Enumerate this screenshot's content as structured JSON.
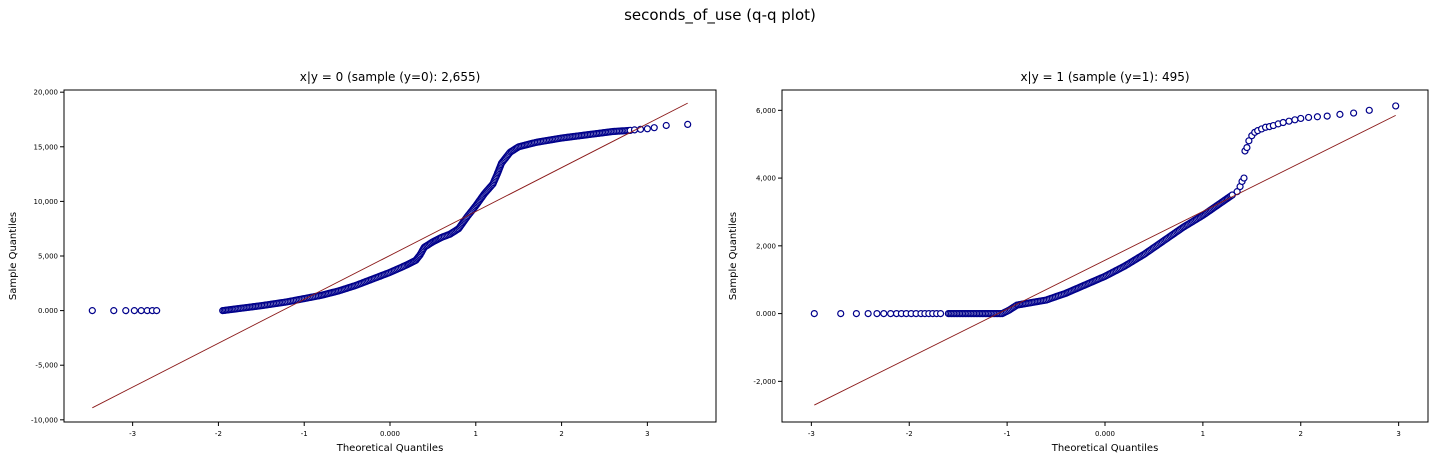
{
  "figure": {
    "title": "seconds_of_use (q-q plot)"
  },
  "colors": {
    "marker_edge": "#00008b",
    "marker_fill": "#ffffff",
    "reference_line": "#8b1a1a"
  },
  "chart_data": [
    {
      "type": "scatter",
      "title": "x|y = 0 (sample (y=0): 2,655)",
      "xlabel": "Theoretical Quantiles",
      "ylabel": "Sample Quantiles",
      "xlim": [
        -3.8,
        3.8
      ],
      "ylim": [
        -10200,
        20200
      ],
      "xticks": [
        -3,
        -2,
        -1,
        0,
        1,
        2,
        3
      ],
      "xtick_labels": [
        "-3",
        "-2",
        "-1",
        "0.000",
        "1",
        "2",
        "3"
      ],
      "yticks": [
        -10000,
        -5000,
        0,
        5000,
        10000,
        15000,
        20000
      ],
      "ytick_labels": [
        "-10,000",
        "-5,000",
        "0.000",
        "5,000",
        "10,000",
        "15,000",
        "20,000"
      ],
      "reference_line": {
        "x": [
          -3.47,
          3.47
        ],
        "y": [
          -8900,
          19000
        ]
      },
      "curve": [
        [
          -1.95,
          0
        ],
        [
          -1.8,
          150
        ],
        [
          -1.5,
          450
        ],
        [
          -1.2,
          800
        ],
        [
          -1.0,
          1100
        ],
        [
          -0.8,
          1400
        ],
        [
          -0.6,
          1800
        ],
        [
          -0.4,
          2300
        ],
        [
          -0.2,
          2900
        ],
        [
          0.0,
          3500
        ],
        [
          0.2,
          4200
        ],
        [
          0.3,
          4600
        ],
        [
          0.35,
          5100
        ],
        [
          0.4,
          5800
        ],
        [
          0.5,
          6300
        ],
        [
          0.6,
          6700
        ],
        [
          0.7,
          7000
        ],
        [
          0.8,
          7500
        ],
        [
          0.9,
          8600
        ],
        [
          1.0,
          9600
        ],
        [
          1.1,
          10700
        ],
        [
          1.2,
          11600
        ],
        [
          1.25,
          12500
        ],
        [
          1.3,
          13500
        ],
        [
          1.4,
          14500
        ],
        [
          1.5,
          15000
        ],
        [
          1.7,
          15400
        ],
        [
          2.0,
          15800
        ],
        [
          2.3,
          16100
        ],
        [
          2.6,
          16400
        ],
        [
          2.8,
          16500
        ]
      ],
      "tail_points": [
        {
          "x": -3.47,
          "y": 0
        },
        {
          "x": -3.22,
          "y": 0
        },
        {
          "x": -3.08,
          "y": 0
        },
        {
          "x": -2.98,
          "y": 0
        },
        {
          "x": -2.9,
          "y": 0
        },
        {
          "x": -2.83,
          "y": 0
        },
        {
          "x": -2.77,
          "y": 0
        },
        {
          "x": -2.72,
          "y": 0
        },
        {
          "x": 2.85,
          "y": 16550
        },
        {
          "x": 2.92,
          "y": 16600
        },
        {
          "x": 3.0,
          "y": 16650
        },
        {
          "x": 3.08,
          "y": 16750
        },
        {
          "x": 3.22,
          "y": 16950
        },
        {
          "x": 3.47,
          "y": 17050
        }
      ]
    },
    {
      "type": "scatter",
      "title": "x|y = 1 (sample (y=1): 495)",
      "xlabel": "Theoretical Quantiles",
      "ylabel": "Sample Quantiles",
      "xlim": [
        -3.3,
        3.3
      ],
      "ylim": [
        -3200,
        6600
      ],
      "xticks": [
        -3,
        -2,
        -1,
        0,
        1,
        2,
        3
      ],
      "xtick_labels": [
        "-3",
        "-2",
        "-1",
        "0.000",
        "1",
        "2",
        "3"
      ],
      "yticks": [
        -2000,
        0,
        2000,
        4000,
        6000
      ],
      "ytick_labels": [
        "-2,000",
        "0.000",
        "2,000",
        "4,000",
        "6,000"
      ],
      "reference_line": {
        "x": [
          -2.97,
          2.97
        ],
        "y": [
          -2700,
          5850
        ]
      },
      "curve": [
        [
          -1.6,
          0
        ],
        [
          -1.3,
          0
        ],
        [
          -1.05,
          0
        ],
        [
          -0.98,
          100
        ],
        [
          -0.9,
          250
        ],
        [
          -0.8,
          300
        ],
        [
          -0.6,
          400
        ],
        [
          -0.4,
          600
        ],
        [
          -0.2,
          850
        ],
        [
          0.0,
          1100
        ],
        [
          0.2,
          1400
        ],
        [
          0.4,
          1750
        ],
        [
          0.6,
          2150
        ],
        [
          0.8,
          2550
        ],
        [
          1.0,
          2900
        ],
        [
          1.1,
          3100
        ],
        [
          1.2,
          3300
        ],
        [
          1.3,
          3500
        ]
      ],
      "tail_points": [
        {
          "x": -2.97,
          "y": 0
        },
        {
          "x": -2.7,
          "y": 0
        },
        {
          "x": -2.54,
          "y": 0
        },
        {
          "x": -2.42,
          "y": 0
        },
        {
          "x": -2.33,
          "y": 0
        },
        {
          "x": -2.26,
          "y": 0
        },
        {
          "x": -2.19,
          "y": 0
        },
        {
          "x": -2.13,
          "y": 0
        },
        {
          "x": -2.08,
          "y": 0
        },
        {
          "x": -2.03,
          "y": 0
        },
        {
          "x": -1.98,
          "y": 0
        },
        {
          "x": -1.93,
          "y": 0
        },
        {
          "x": -1.88,
          "y": 0
        },
        {
          "x": -1.84,
          "y": 0
        },
        {
          "x": -1.8,
          "y": 0
        },
        {
          "x": -1.76,
          "y": 0
        },
        {
          "x": -1.72,
          "y": 0
        },
        {
          "x": -1.68,
          "y": 0
        },
        {
          "x": 1.35,
          "y": 3600
        },
        {
          "x": 1.38,
          "y": 3750
        },
        {
          "x": 1.4,
          "y": 3900
        },
        {
          "x": 1.42,
          "y": 4000
        },
        {
          "x": 1.43,
          "y": 4800
        },
        {
          "x": 1.45,
          "y": 4900
        },
        {
          "x": 1.47,
          "y": 5100
        },
        {
          "x": 1.5,
          "y": 5250
        },
        {
          "x": 1.53,
          "y": 5350
        },
        {
          "x": 1.56,
          "y": 5400
        },
        {
          "x": 1.6,
          "y": 5450
        },
        {
          "x": 1.64,
          "y": 5500
        },
        {
          "x": 1.68,
          "y": 5520
        },
        {
          "x": 1.72,
          "y": 5550
        },
        {
          "x": 1.77,
          "y": 5600
        },
        {
          "x": 1.82,
          "y": 5640
        },
        {
          "x": 1.88,
          "y": 5680
        },
        {
          "x": 1.94,
          "y": 5720
        },
        {
          "x": 2.0,
          "y": 5760
        },
        {
          "x": 2.08,
          "y": 5790
        },
        {
          "x": 2.17,
          "y": 5810
        },
        {
          "x": 2.27,
          "y": 5830
        },
        {
          "x": 2.4,
          "y": 5880
        },
        {
          "x": 2.54,
          "y": 5920
        },
        {
          "x": 2.7,
          "y": 6000
        },
        {
          "x": 2.97,
          "y": 6130
        }
      ]
    }
  ]
}
